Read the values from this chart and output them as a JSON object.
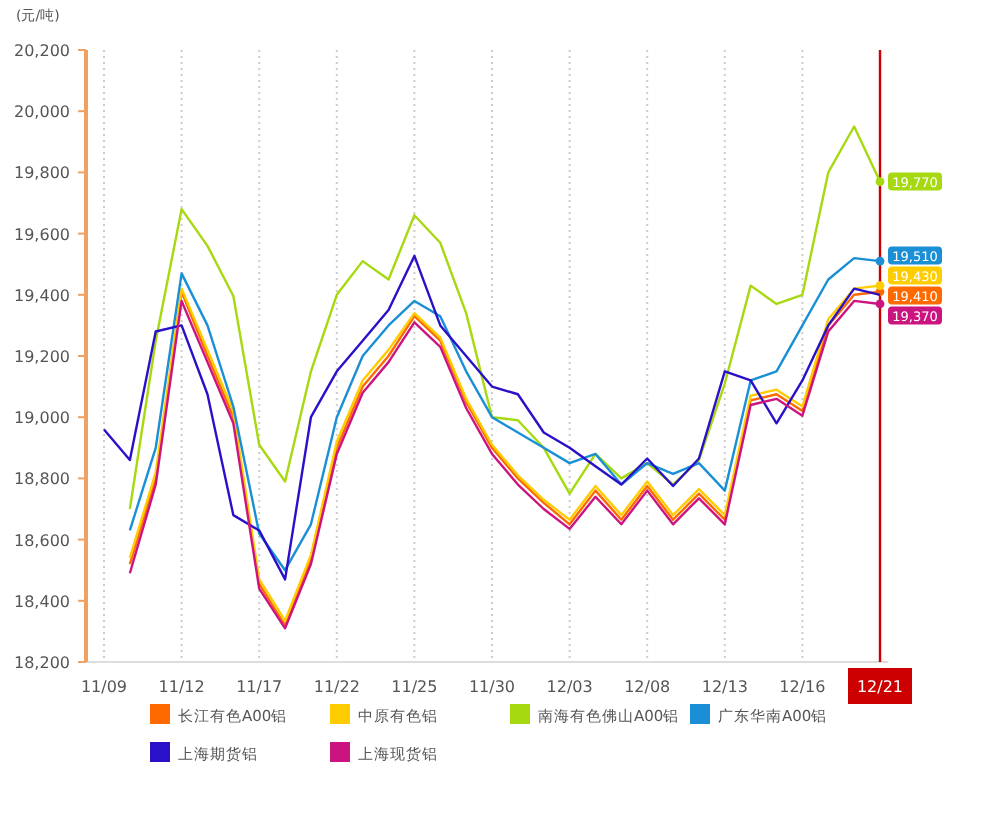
{
  "chart_data": {
    "type": "line",
    "ylabel": "(元/吨)",
    "categories": [
      "11/09",
      null,
      null,
      "11/12",
      null,
      null,
      "11/17",
      null,
      null,
      "11/22",
      null,
      null,
      "11/25",
      null,
      null,
      "11/30",
      null,
      null,
      "12/03",
      null,
      null,
      "12/08",
      null,
      null,
      "12/13",
      null,
      null,
      "12/16",
      null,
      null,
      "12/21"
    ],
    "ylim": [
      18200,
      20200
    ],
    "yticks": [
      {
        "value": 18200,
        "label": "18,200"
      },
      {
        "value": 18400,
        "label": "18,400"
      },
      {
        "value": 18600,
        "label": "18,600"
      },
      {
        "value": 18800,
        "label": "18,800"
      },
      {
        "value": 19000,
        "label": "19,000"
      },
      {
        "value": 19200,
        "label": "19,200"
      },
      {
        "value": 19400,
        "label": "19,400"
      },
      {
        "value": 19600,
        "label": "19,600"
      },
      {
        "value": 19800,
        "label": "19,800"
      },
      {
        "value": 20000,
        "label": "20,000"
      },
      {
        "value": 20200,
        "label": "20,200"
      }
    ],
    "grid": "x",
    "legend": "bottom",
    "marker": "none",
    "line_style": "solid",
    "ref_lines": [
      {
        "axis": "x",
        "value": "12/21",
        "color": "#cc0000"
      }
    ],
    "series": [
      {
        "name": "长江有色A00铝",
        "color": "#ff6a00",
        "values": [
          null,
          18520,
          18800,
          19410,
          19200,
          19000,
          18455,
          18320,
          18535,
          18900,
          19100,
          19200,
          19330,
          19250,
          19050,
          18900,
          18800,
          18720,
          18650,
          18760,
          18665,
          18775,
          18665,
          18750,
          18665,
          19055,
          19075,
          19020,
          19300,
          19400,
          19410
        ],
        "value_labels": [
          null,
          null,
          null,
          null,
          null,
          null,
          null,
          null,
          null,
          null,
          null,
          null,
          null,
          null,
          null,
          null,
          null,
          null,
          null,
          null,
          null,
          null,
          null,
          null,
          null,
          null,
          null,
          null,
          null,
          null,
          "19,410"
        ]
      },
      {
        "name": "中原有色铝",
        "color": "#ffcc00",
        "values": [
          null,
          18540,
          18820,
          19420,
          19220,
          19020,
          18470,
          18335,
          18550,
          18920,
          19120,
          19220,
          19340,
          19260,
          19060,
          18910,
          18810,
          18730,
          18665,
          18775,
          18680,
          18790,
          18680,
          18765,
          18680,
          19070,
          19090,
          19035,
          19320,
          19420,
          19430
        ],
        "value_labels": [
          null,
          null,
          null,
          null,
          null,
          null,
          null,
          null,
          null,
          null,
          null,
          null,
          null,
          null,
          null,
          null,
          null,
          null,
          null,
          null,
          null,
          null,
          null,
          null,
          null,
          null,
          null,
          null,
          null,
          null,
          "19,430"
        ]
      },
      {
        "name": "南海有色佛山A00铝",
        "color": "#a6d90f",
        "values": [
          null,
          18700,
          19250,
          19680,
          19560,
          19396,
          18910,
          18790,
          19150,
          19400,
          19510,
          19450,
          19660,
          19570,
          19340,
          19000,
          18990,
          18900,
          18750,
          18880,
          18800,
          18850,
          18780,
          18860,
          19110,
          19430,
          19370,
          19400,
          19800,
          19950,
          19770
        ],
        "value_labels": [
          null,
          null,
          null,
          null,
          null,
          null,
          null,
          null,
          null,
          null,
          null,
          null,
          null,
          null,
          null,
          null,
          null,
          null,
          null,
          null,
          null,
          null,
          null,
          null,
          null,
          null,
          null,
          null,
          null,
          null,
          "19,770"
        ]
      },
      {
        "name": "广东华南A00铝",
        "color": "#1a8fd6",
        "values": [
          null,
          18630,
          18900,
          19470,
          19300,
          19035,
          18620,
          18500,
          18650,
          19000,
          19200,
          19300,
          19380,
          19330,
          19150,
          19000,
          18950,
          18900,
          18850,
          18880,
          18780,
          18850,
          18815,
          18850,
          18760,
          19120,
          19150,
          19300,
          19450,
          19520,
          19510
        ],
        "value_labels": [
          null,
          null,
          null,
          null,
          null,
          null,
          null,
          null,
          null,
          null,
          null,
          null,
          null,
          null,
          null,
          null,
          null,
          null,
          null,
          null,
          null,
          null,
          null,
          null,
          null,
          null,
          null,
          null,
          null,
          null,
          "19,510"
        ]
      },
      {
        "name": "上海期货铝",
        "color": "#2a10c8",
        "values": [
          18960,
          18860,
          19280,
          19300,
          19075,
          18680,
          18630,
          18470,
          19000,
          19150,
          19250,
          19350,
          19527,
          19300,
          19200,
          19100,
          19075,
          18950,
          18900,
          18840,
          18780,
          18865,
          18775,
          18865,
          19150,
          19120,
          18980,
          19120,
          19300,
          19420,
          19400
        ]
      },
      {
        "name": "上海现货铝",
        "color": "#cc1480",
        "values": [
          null,
          18490,
          18780,
          19380,
          19180,
          18980,
          18440,
          18310,
          18520,
          18880,
          19080,
          19180,
          19310,
          19230,
          19030,
          18880,
          18780,
          18700,
          18635,
          18740,
          18650,
          18760,
          18650,
          18735,
          18650,
          19040,
          19060,
          19005,
          19280,
          19380,
          19370
        ],
        "value_labels": [
          null,
          null,
          null,
          null,
          null,
          null,
          null,
          null,
          null,
          null,
          null,
          null,
          null,
          null,
          null,
          null,
          null,
          null,
          null,
          null,
          null,
          null,
          null,
          null,
          null,
          null,
          null,
          null,
          null,
          null,
          "19,370"
        ]
      }
    ]
  }
}
